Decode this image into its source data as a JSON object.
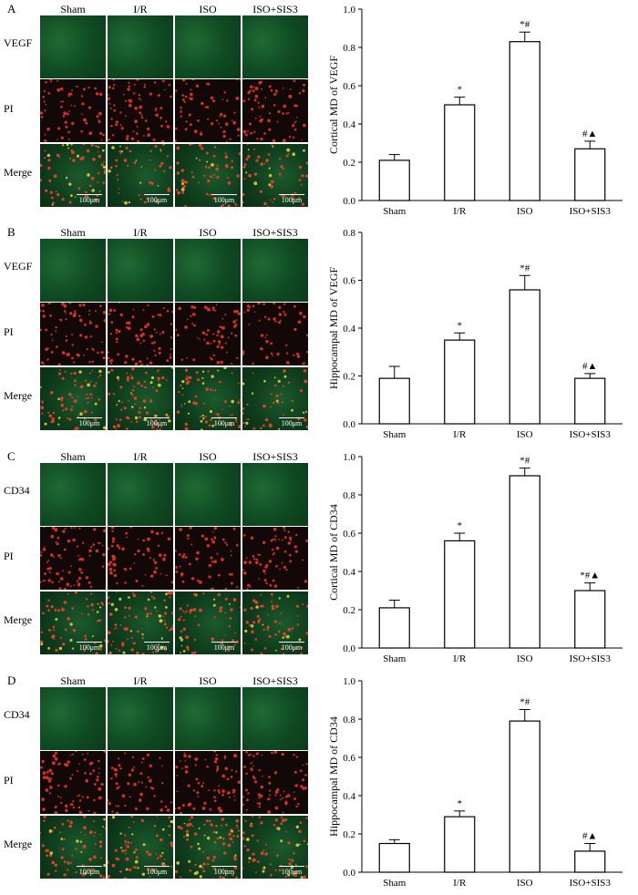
{
  "columns": [
    "Sham",
    "I/R",
    "ISO",
    "ISO+SIS3"
  ],
  "scale_label": "100μm",
  "panels": [
    {
      "letter": "A",
      "rows": [
        "VEGF",
        "PI",
        "Merge"
      ]
    },
    {
      "letter": "B",
      "rows": [
        "VEGF",
        "PI",
        "Merge"
      ]
    },
    {
      "letter": "C",
      "rows": [
        "CD34",
        "PI",
        "Merge"
      ]
    },
    {
      "letter": "D",
      "rows": [
        "CD34",
        "PI",
        "Merge"
      ]
    }
  ],
  "chart_data": [
    {
      "type": "bar",
      "ylabel": "Cortical MD of VEGF",
      "categories": [
        "Sham",
        "I/R",
        "ISO",
        "ISO+SIS3"
      ],
      "values": [
        0.21,
        0.5,
        0.83,
        0.27
      ],
      "errors": [
        0.03,
        0.04,
        0.05,
        0.04
      ],
      "annotations": [
        "",
        "*",
        "*#",
        "#▲"
      ],
      "ylim": [
        0,
        1.0
      ],
      "yticks": [
        0.0,
        0.2,
        0.4,
        0.6,
        0.8,
        1.0
      ],
      "ytick_labels": [
        "0.0",
        "0.2",
        "0.4",
        "0.6",
        "0.8",
        "1.0"
      ]
    },
    {
      "type": "bar",
      "ylabel": "Hippocampal MD of VEGF",
      "categories": [
        "Sham",
        "I/R",
        "ISO",
        "ISO+SIS3"
      ],
      "values": [
        0.19,
        0.35,
        0.56,
        0.19
      ],
      "errors": [
        0.05,
        0.03,
        0.06,
        0.02
      ],
      "annotations": [
        "",
        "*",
        "*#",
        "#▲"
      ],
      "ylim": [
        0,
        0.8
      ],
      "yticks": [
        0.0,
        0.2,
        0.4,
        0.6,
        0.8
      ],
      "ytick_labels": [
        "0.0",
        "0.2",
        "0.4",
        "0.6",
        "0.8"
      ]
    },
    {
      "type": "bar",
      "ylabel": "Cortical MD of CD34",
      "categories": [
        "Sham",
        "I/R",
        "ISO",
        "ISO+SIS3"
      ],
      "values": [
        0.21,
        0.56,
        0.9,
        0.3
      ],
      "errors": [
        0.04,
        0.04,
        0.04,
        0.04
      ],
      "annotations": [
        "",
        "*",
        "*#",
        "*#▲"
      ],
      "ylim": [
        0,
        1.0
      ],
      "yticks": [
        0.0,
        0.2,
        0.4,
        0.6,
        0.8,
        1.0
      ],
      "ytick_labels": [
        "0.0",
        "0.2",
        "0.4",
        "0.6",
        "0.8",
        "1.0"
      ]
    },
    {
      "type": "bar",
      "ylabel": "Hippocampal MD of CD34",
      "categories": [
        "Sham",
        "I/R",
        "ISO",
        "ISO+SIS3"
      ],
      "values": [
        0.15,
        0.29,
        0.79,
        0.11
      ],
      "errors": [
        0.02,
        0.03,
        0.06,
        0.04
      ],
      "annotations": [
        "",
        "*",
        "*#",
        "#▲"
      ],
      "ylim": [
        0,
        1.0
      ],
      "yticks": [
        0.0,
        0.2,
        0.4,
        0.6,
        0.8,
        1.0
      ],
      "ytick_labels": [
        "0.0",
        "0.2",
        "0.4",
        "0.6",
        "0.8",
        "1.0"
      ]
    }
  ]
}
